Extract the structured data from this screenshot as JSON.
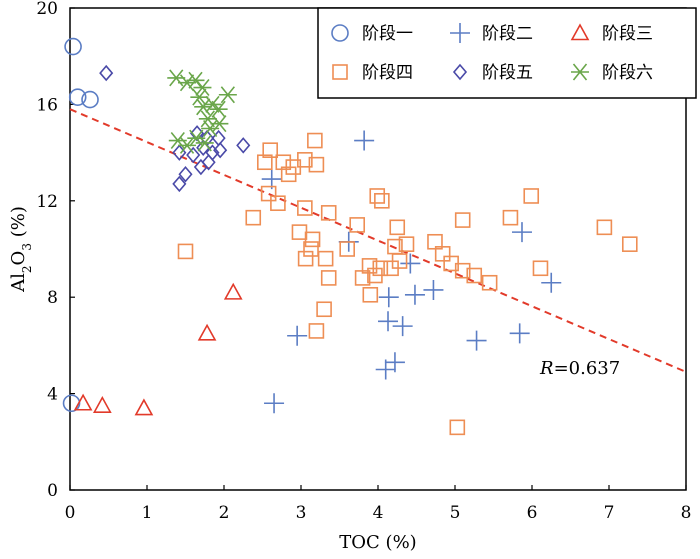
{
  "chart_data": {
    "type": "scatter",
    "xlabel": "TOC (%)",
    "ylabel_parts": {
      "prefix": "Al",
      "sub1": "2",
      "mid": "O",
      "sub2": "3",
      "suffix": " (%)"
    },
    "xlim": [
      0,
      8
    ],
    "ylim": [
      0,
      20
    ],
    "x_ticks": [
      0,
      1,
      2,
      3,
      4,
      5,
      6,
      7,
      8
    ],
    "y_ticks": [
      0,
      4,
      8,
      12,
      16,
      20
    ],
    "legend_position": "top-right",
    "grid": false,
    "series": [
      {
        "name": "阶段一",
        "marker": "circle",
        "color": "#5b7dc4",
        "points": [
          [
            0.04,
            18.4
          ],
          [
            0.1,
            16.3
          ],
          [
            0.26,
            16.2
          ],
          [
            0.02,
            3.6
          ]
        ]
      },
      {
        "name": "阶段二",
        "marker": "plus",
        "color": "#5b7dc4",
        "points": [
          [
            3.82,
            14.5
          ],
          [
            2.62,
            12.9
          ],
          [
            3.62,
            10.3
          ],
          [
            4.42,
            9.4
          ],
          [
            5.87,
            10.7
          ],
          [
            6.25,
            8.6
          ],
          [
            4.72,
            8.3
          ],
          [
            4.48,
            8.1
          ],
          [
            4.14,
            8.0
          ],
          [
            4.13,
            7.0
          ],
          [
            4.32,
            6.8
          ],
          [
            2.95,
            6.4
          ],
          [
            5.28,
            6.2
          ],
          [
            5.84,
            6.5
          ],
          [
            4.22,
            5.3
          ],
          [
            4.1,
            5.0
          ],
          [
            2.65,
            3.6
          ]
        ]
      },
      {
        "name": "阶段三",
        "marker": "triangle",
        "color": "#e23a2a",
        "points": [
          [
            2.12,
            8.2
          ],
          [
            1.78,
            6.5
          ],
          [
            0.17,
            3.6
          ],
          [
            0.42,
            3.5
          ],
          [
            0.96,
            3.4
          ]
        ]
      },
      {
        "name": "阶段四",
        "marker": "square",
        "color": "#ee8e54",
        "points": [
          [
            3.18,
            14.5
          ],
          [
            2.6,
            14.1
          ],
          [
            2.77,
            13.6
          ],
          [
            2.53,
            13.6
          ],
          [
            2.9,
            13.4
          ],
          [
            3.05,
            13.7
          ],
          [
            3.2,
            13.5
          ],
          [
            2.84,
            13.1
          ],
          [
            2.58,
            12.3
          ],
          [
            2.38,
            11.3
          ],
          [
            2.7,
            11.9
          ],
          [
            3.05,
            11.7
          ],
          [
            3.36,
            11.5
          ],
          [
            3.99,
            12.2
          ],
          [
            4.05,
            12.0
          ],
          [
            5.1,
            11.2
          ],
          [
            5.72,
            11.3
          ],
          [
            5.99,
            12.2
          ],
          [
            6.94,
            10.9
          ],
          [
            7.27,
            10.2
          ],
          [
            2.98,
            10.7
          ],
          [
            3.15,
            10.4
          ],
          [
            3.13,
            10.0
          ],
          [
            3.32,
            9.6
          ],
          [
            3.06,
            9.6
          ],
          [
            3.6,
            10.0
          ],
          [
            3.73,
            11.0
          ],
          [
            4.25,
            10.9
          ],
          [
            4.22,
            10.1
          ],
          [
            4.37,
            10.2
          ],
          [
            4.74,
            10.3
          ],
          [
            4.84,
            9.8
          ],
          [
            5.1,
            9.1
          ],
          [
            5.25,
            8.9
          ],
          [
            5.45,
            8.6
          ],
          [
            4.95,
            9.4
          ],
          [
            4.03,
            9.2
          ],
          [
            4.17,
            9.2
          ],
          [
            4.28,
            9.5
          ],
          [
            3.89,
            9.3
          ],
          [
            3.96,
            8.9
          ],
          [
            3.8,
            8.8
          ],
          [
            3.9,
            8.1
          ],
          [
            3.36,
            8.8
          ],
          [
            3.3,
            7.5
          ],
          [
            3.2,
            6.6
          ],
          [
            6.11,
            9.2
          ],
          [
            1.5,
            9.9
          ],
          [
            5.03,
            2.6
          ]
        ]
      },
      {
        "name": "阶段五",
        "marker": "diamond",
        "color": "#4a4aa8",
        "points": [
          [
            0.47,
            17.3
          ],
          [
            1.65,
            14.8
          ],
          [
            1.78,
            14.6
          ],
          [
            1.93,
            14.6
          ],
          [
            2.25,
            14.3
          ],
          [
            1.42,
            14.0
          ],
          [
            1.6,
            13.9
          ],
          [
            1.73,
            14.2
          ],
          [
            1.85,
            14.0
          ],
          [
            1.5,
            13.1
          ],
          [
            1.7,
            13.4
          ],
          [
            1.8,
            13.6
          ],
          [
            1.95,
            14.1
          ],
          [
            1.42,
            12.7
          ]
        ]
      },
      {
        "name": "阶段六",
        "marker": "asterisk",
        "color": "#6aa64a",
        "points": [
          [
            1.38,
            17.1
          ],
          [
            1.52,
            16.9
          ],
          [
            1.63,
            17.0
          ],
          [
            1.72,
            16.7
          ],
          [
            1.68,
            16.3
          ],
          [
            1.73,
            15.9
          ],
          [
            1.85,
            16.0
          ],
          [
            1.93,
            15.8
          ],
          [
            2.05,
            16.4
          ],
          [
            1.79,
            15.4
          ],
          [
            1.94,
            15.2
          ],
          [
            1.82,
            15.0
          ],
          [
            1.64,
            14.6
          ],
          [
            1.4,
            14.5
          ],
          [
            1.52,
            14.3
          ],
          [
            1.75,
            14.4
          ]
        ]
      }
    ],
    "trendline": {
      "color": "#e23a2a",
      "from": [
        0,
        15.8
      ],
      "to": [
        8,
        4.9
      ]
    },
    "annotation": {
      "r_label": "R",
      "r_value": "=0.637"
    }
  }
}
